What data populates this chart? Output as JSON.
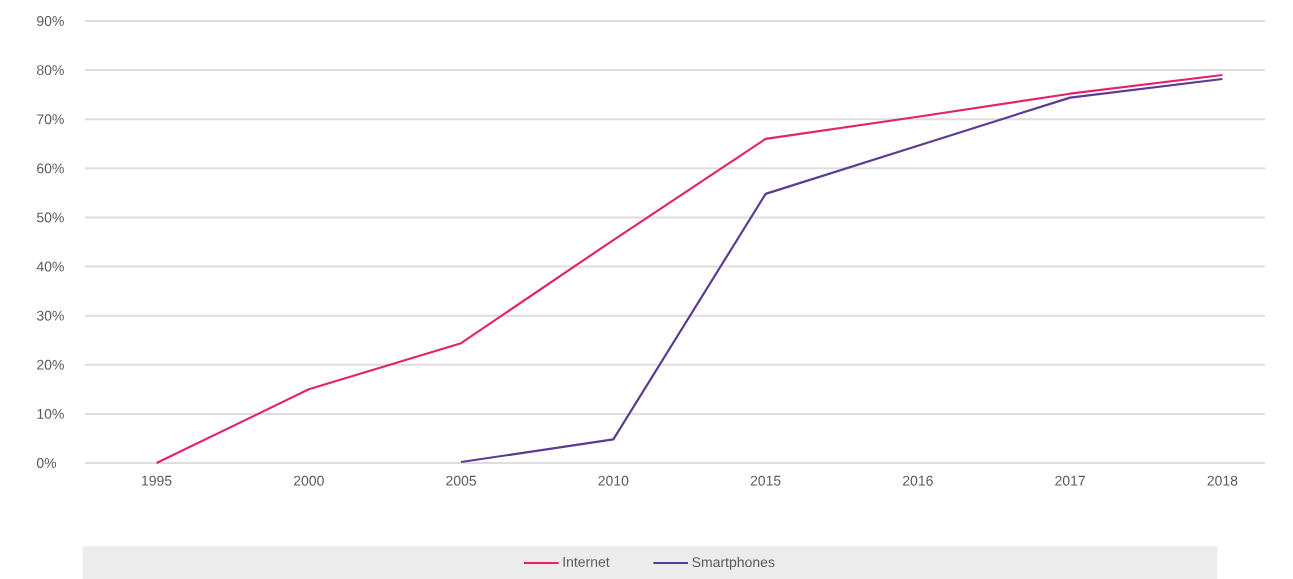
{
  "chart_data": {
    "type": "line",
    "categories": [
      "1995",
      "2000",
      "2005",
      "2010",
      "2015",
      "2016",
      "2017",
      "2018"
    ],
    "series": [
      {
        "name": "Internet",
        "color": "#e3226f",
        "values": [
          0,
          15,
          24.4,
          45.4,
          66,
          70.5,
          75.2,
          79
        ]
      },
      {
        "name": "Smartphones",
        "color": "#5b3a92",
        "values": [
          null,
          null,
          0.2,
          4.8,
          54.8,
          64.6,
          74.4,
          78.2
        ]
      }
    ],
    "ylim": [
      0,
      90
    ],
    "yticks": [
      {
        "value": 0,
        "label": "0%"
      },
      {
        "value": 10,
        "label": "10%"
      },
      {
        "value": 20,
        "label": "20%"
      },
      {
        "value": 30,
        "label": "30%"
      },
      {
        "value": 40,
        "label": "40%"
      },
      {
        "value": 50,
        "label": "50%"
      },
      {
        "value": 60,
        "label": "60%"
      },
      {
        "value": 70,
        "label": "70%"
      },
      {
        "value": 80,
        "label": "80%"
      },
      {
        "value": 90,
        "label": "90%"
      }
    ],
    "grid": "y",
    "legend": "bottom"
  }
}
